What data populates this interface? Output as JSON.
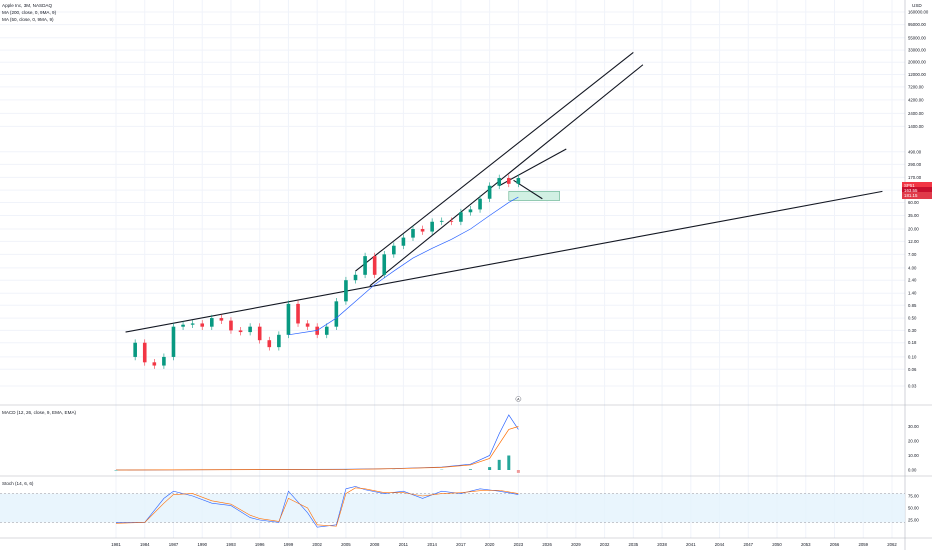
{
  "header": {
    "symbol": "Apple Inc, 3M, NASDAQ",
    "indicators": [
      "MA (200, close, 0, 9MA, 9)",
      "MA (50, close, 0, 9MA, 9)"
    ],
    "currency": "USD"
  },
  "price_tag": {
    "label": "SP51",
    "value": "163.55",
    "sub": "181.15",
    "color": "#f23645"
  },
  "macd_label": "MACD (12, 26, close, 9, EMA, EMA)",
  "stoch_label": "Stoch (14, 6, 6)",
  "event_marker": "A",
  "chart_data": [
    {
      "type": "candlestick",
      "title": "Apple Inc, 3M, NASDAQ",
      "scale": "log",
      "x_ticks": [
        "1981",
        "1984",
        "1987",
        "1990",
        "1993",
        "1996",
        "1999",
        "2002",
        "2005",
        "2008",
        "2011",
        "2014",
        "2017",
        "2020",
        "2023",
        "2026",
        "2029",
        "2032",
        "2035",
        "2038",
        "2041",
        "2044",
        "2047",
        "2050",
        "2053",
        "2056",
        "2059",
        "2062"
      ],
      "y_ticks": [
        "0.03",
        "0.06",
        "0.10",
        "0.18",
        "0.30",
        "0.50",
        "0.85",
        "1.40",
        "2.40",
        "4.00",
        "7.00",
        "12.00",
        "20.00",
        "35.00",
        "60.00",
        "100.00",
        "170.00",
        "290.00",
        "490.00",
        "1400.00",
        "2400.00",
        "4200.00",
        "7200.00",
        "12000.00",
        "20000.00",
        "33000.00",
        "55000.00",
        "95000.00",
        "160000.00"
      ],
      "series": [
        {
          "name": "AAPL 3M close",
          "x": [
            1981,
            1983,
            1984,
            1985,
            1986,
            1987,
            1988,
            1989,
            1990,
            1991,
            1992,
            1993,
            1994,
            1995,
            1996,
            1997,
            1998,
            1999,
            2000,
            2001,
            2002,
            2003,
            2004,
            2005,
            2006,
            2007,
            2008,
            2009,
            2010,
            2011,
            2012,
            2013,
            2014,
            2015,
            2016,
            2017,
            2018,
            2019,
            2020,
            2021,
            2022,
            2023
          ],
          "y": [
            0.1,
            0.18,
            0.08,
            0.07,
            0.1,
            0.35,
            0.38,
            0.4,
            0.35,
            0.5,
            0.45,
            0.3,
            0.28,
            0.35,
            0.2,
            0.15,
            0.25,
            0.9,
            0.4,
            0.35,
            0.25,
            0.35,
            1.0,
            2.4,
            3.0,
            6.5,
            3.0,
            7.0,
            10.0,
            14.0,
            20.0,
            18.0,
            27.0,
            28.0,
            27.0,
            40.0,
            45.0,
            70.0,
            120.0,
            165.0,
            130.0,
            165.0
          ]
        },
        {
          "name": "MA 200",
          "x": [
            1999,
            2002,
            2004,
            2006,
            2008,
            2010,
            2012,
            2014,
            2016,
            2018,
            2020,
            2022,
            2023
          ],
          "y": [
            0.25,
            0.3,
            0.5,
            1.0,
            2.0,
            3.5,
            6.0,
            9.0,
            13.0,
            20.0,
            35.0,
            60.0,
            75.0
          ]
        }
      ],
      "annotations": {
        "trendlines": 5,
        "highlight_zone": "demand box 2022-2027"
      }
    },
    {
      "type": "bar",
      "title": "MACD (12, 26, close, 9, EMA, EMA)",
      "y_ticks": [
        "30.00",
        "20.00",
        "10.00",
        "0.00"
      ],
      "series": [
        {
          "name": "MACD",
          "x": [
            1981,
            2005,
            2010,
            2015,
            2018,
            2020,
            2021,
            2022,
            2023
          ],
          "y": [
            0,
            0.5,
            1,
            2,
            4,
            10,
            25,
            38,
            28
          ]
        },
        {
          "name": "Signal",
          "x": [
            1981,
            2005,
            2010,
            2015,
            2018,
            2020,
            2021,
            2022,
            2023
          ],
          "y": [
            0,
            0.4,
            0.9,
            1.8,
            3.5,
            8,
            18,
            28,
            30
          ]
        }
      ]
    },
    {
      "type": "line",
      "title": "Stoch (14, 6, 6)",
      "y_ticks": [
        "75.00",
        "50.00",
        "25.00"
      ],
      "ylim": [
        0,
        100
      ],
      "series": [
        {
          "name": "%K",
          "x": [
            1981,
            1984,
            1986,
            1987,
            1989,
            1991,
            1993,
            1995,
            1996,
            1998,
            1999,
            2001,
            2002,
            2004,
            2005,
            2006,
            2007,
            2009,
            2011,
            2013,
            2015,
            2017,
            2019,
            2021,
            2023
          ],
          "y": [
            20,
            20,
            70,
            85,
            75,
            60,
            55,
            30,
            25,
            20,
            85,
            40,
            10,
            15,
            90,
            95,
            88,
            80,
            85,
            70,
            85,
            80,
            90,
            85,
            78
          ]
        },
        {
          "name": "%D",
          "x": [
            1981,
            1984,
            1986,
            1987,
            1989,
            1991,
            1993,
            1995,
            1996,
            1998,
            1999,
            2001,
            2002,
            2004,
            2005,
            2006,
            2007,
            2009,
            2011,
            2013,
            2015,
            2017,
            2019,
            2021,
            2023
          ],
          "y": [
            18,
            20,
            60,
            78,
            80,
            65,
            58,
            35,
            28,
            22,
            70,
            50,
            15,
            12,
            80,
            92,
            90,
            82,
            82,
            75,
            80,
            82,
            86,
            87,
            80
          ]
        }
      ]
    }
  ]
}
